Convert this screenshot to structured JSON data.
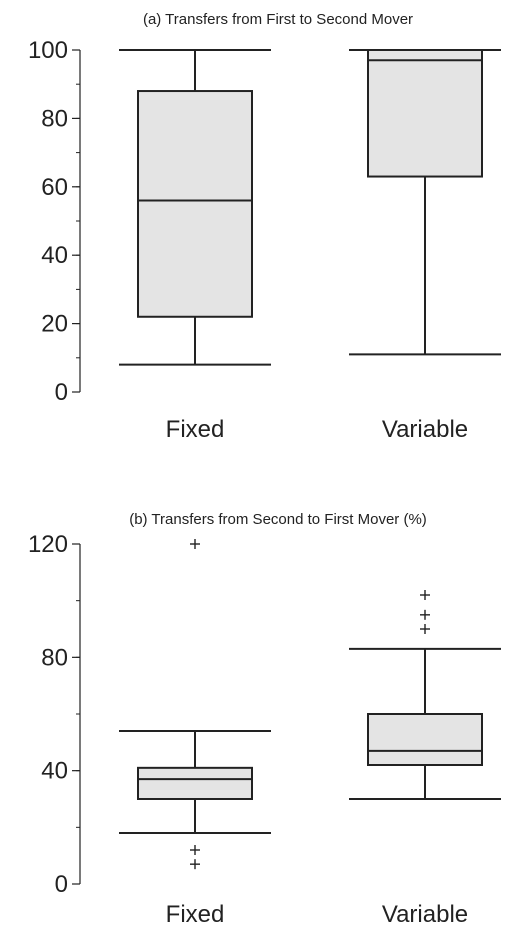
{
  "chart_data": [
    {
      "type": "boxplot",
      "title": "(a) Transfers from First to Second Mover",
      "xlabel": "",
      "ylabel": "",
      "ylim": [
        0,
        100
      ],
      "y_ticks": [
        "0",
        "20",
        "40",
        "60",
        "80",
        "100"
      ],
      "minor_ticks": true,
      "grid": false,
      "categories": [
        "Fixed",
        "Variable"
      ],
      "boxes": [
        {
          "category": "Fixed",
          "whisker_low": 8,
          "q1": 22,
          "median": 56,
          "q3": 88,
          "whisker_high": 100,
          "outliers": []
        },
        {
          "category": "Variable",
          "whisker_low": 11,
          "q1": 63,
          "median": 97,
          "q3": 100,
          "whisker_high": 100,
          "outliers": []
        }
      ]
    },
    {
      "type": "boxplot",
      "title": "(b) Transfers from Second to First Mover (%)",
      "xlabel": "",
      "ylabel": "",
      "ylim": [
        0,
        120
      ],
      "y_ticks": [
        "0",
        "40",
        "80",
        "120"
      ],
      "minor_ticks": true,
      "grid": false,
      "categories": [
        "Fixed",
        "Variable"
      ],
      "boxes": [
        {
          "category": "Fixed",
          "whisker_low": 18,
          "q1": 30,
          "median": 37,
          "q3": 41,
          "whisker_high": 54,
          "outliers": [
            120,
            12,
            7
          ]
        },
        {
          "category": "Variable",
          "whisker_low": 30,
          "q1": 42,
          "median": 47,
          "q3": 60,
          "whisker_high": 83,
          "outliers": [
            102,
            95,
            90
          ]
        }
      ]
    }
  ],
  "colors": {
    "box_fill": "#e4e4e4",
    "stroke": "#222222",
    "background": "#ffffff"
  }
}
